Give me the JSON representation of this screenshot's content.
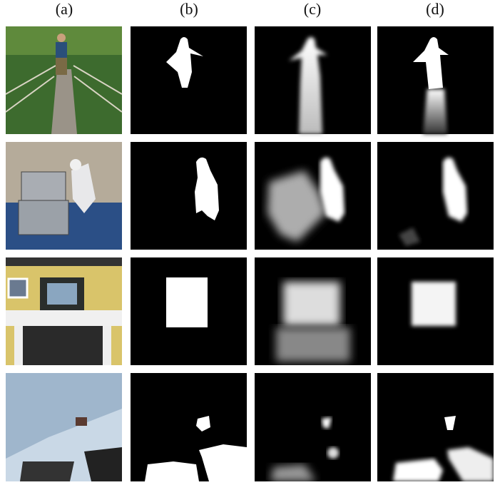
{
  "figure": {
    "column_labels": [
      "(a)",
      "(b)",
      "(c)",
      "(d)"
    ]
  }
}
